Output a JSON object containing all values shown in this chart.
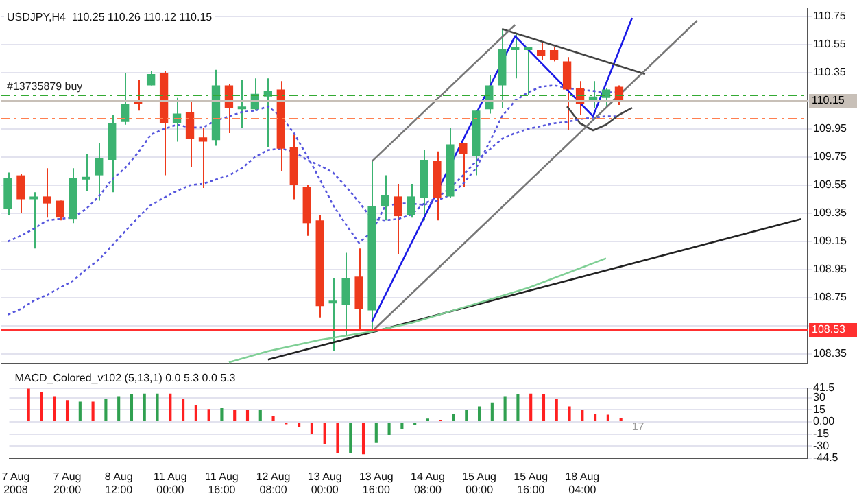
{
  "chart_data": [
    {
      "type": "candlestick",
      "title": "USDJPY,H4  110.25 110.26 110.12 110.15",
      "categories": [
        null,
        null,
        null,
        null,
        null,
        null,
        null,
        null,
        null,
        null,
        null,
        null,
        null,
        null,
        null,
        null,
        null,
        null,
        null,
        null,
        null,
        null,
        null,
        null,
        null,
        null,
        null,
        null,
        null,
        null,
        null,
        null,
        null,
        null,
        null,
        null,
        null,
        null,
        null,
        null,
        null,
        null,
        null,
        null,
        null,
        null,
        null,
        null,
        null,
        null,
        null,
        null,
        null,
        null,
        null,
        null,
        null,
        null,
        null,
        null,
        null,
        null
      ],
      "tick_labels": "y",
      "ohlc": [
        [
          109.38,
          109.64,
          109.34,
          109.6
        ],
        [
          109.62,
          109.63,
          109.35,
          109.45
        ],
        [
          109.45,
          109.5,
          109.1,
          109.46
        ],
        [
          109.47,
          109.67,
          109.32,
          109.42
        ],
        [
          109.44,
          109.44,
          109.3,
          109.32
        ],
        [
          109.31,
          109.67,
          109.28,
          109.6
        ],
        [
          109.59,
          109.77,
          109.51,
          109.6
        ],
        [
          109.62,
          109.85,
          109.44,
          109.74
        ],
        [
          109.73,
          110.05,
          109.5,
          109.99
        ],
        [
          110.0,
          110.35,
          109.98,
          110.13
        ],
        [
          110.15,
          110.3,
          110.08,
          110.13
        ],
        [
          110.26,
          110.36,
          110.26,
          110.34
        ],
        [
          110.35,
          110.36,
          109.62,
          109.99
        ],
        [
          109.99,
          110.17,
          109.86,
          110.06
        ],
        [
          110.07,
          110.14,
          109.68,
          109.88
        ],
        [
          109.89,
          109.96,
          109.53,
          109.86
        ],
        [
          109.87,
          110.37,
          109.83,
          110.26
        ],
        [
          110.26,
          110.27,
          109.92,
          110.1
        ],
        [
          110.09,
          110.3,
          109.96,
          110.1
        ],
        [
          110.09,
          110.31,
          110.08,
          110.2
        ],
        [
          110.18,
          110.31,
          109.82,
          110.22
        ],
        [
          110.23,
          110.29,
          109.65,
          109.81
        ],
        [
          109.82,
          109.91,
          109.45,
          109.55
        ],
        [
          109.54,
          109.55,
          109.19,
          109.28
        ],
        [
          109.3,
          109.34,
          108.61,
          108.69
        ],
        [
          108.71,
          108.89,
          108.37,
          108.72
        ],
        [
          108.7,
          109.07,
          108.48,
          108.89
        ],
        [
          108.9,
          109.1,
          108.52,
          108.67
        ],
        [
          108.66,
          109.72,
          108.52,
          109.4
        ],
        [
          109.4,
          109.62,
          109.3,
          109.48
        ],
        [
          109.47,
          109.56,
          109.06,
          109.33
        ],
        [
          109.34,
          109.56,
          109.32,
          109.47
        ],
        [
          109.46,
          109.8,
          109.3,
          109.73
        ],
        [
          109.72,
          109.79,
          109.3,
          109.46
        ],
        [
          109.47,
          109.96,
          109.46,
          109.84
        ],
        [
          109.85,
          109.85,
          109.54,
          109.77
        ],
        [
          109.76,
          110.08,
          109.62,
          110.08
        ],
        [
          110.09,
          110.33,
          110.06,
          110.26
        ],
        [
          110.26,
          110.66,
          110.1,
          110.52
        ],
        [
          110.51,
          110.63,
          110.31,
          110.52
        ],
        [
          110.51,
          110.52,
          110.19,
          110.52
        ],
        [
          110.51,
          110.56,
          110.44,
          110.47
        ],
        [
          110.51,
          110.53,
          110.43,
          110.44
        ],
        [
          110.43,
          110.46,
          109.94,
          110.23
        ],
        [
          110.24,
          110.29,
          110.05,
          110.13
        ],
        [
          110.14,
          110.29,
          110.1,
          110.18
        ],
        [
          110.17,
          110.24,
          110.11,
          110.23
        ],
        [
          110.25,
          110.26,
          110.12,
          110.15
        ],
        null,
        null,
        null,
        null,
        null,
        null,
        null,
        null,
        null,
        null,
        null,
        null,
        null,
        null
      ],
      "colors": [
        "#3cb371",
        "#ee3a1c",
        "#3cb371",
        "#ee3a1c",
        "#ee3a1c",
        "#3cb371",
        "#3cb371",
        "#3cb371",
        "#3cb371",
        "#3cb371",
        "#ee3a1c",
        "#3cb371",
        "#ee3a1c",
        "#3cb371",
        "#ee3a1c",
        "#ee3a1c",
        "#3cb371",
        "#ee3a1c",
        "#3cb371",
        "#3cb371",
        "#3cb371",
        "#ee3a1c",
        "#ee3a1c",
        "#ee3a1c",
        "#ee3a1c",
        "#3cb371",
        "#3cb371",
        "#ee3a1c",
        "#3cb371",
        "#3cb371",
        "#ee3a1c",
        "#3cb371",
        "#3cb371",
        "#ee3a1c",
        "#3cb371",
        "#ee3a1c",
        "#3cb371",
        "#3cb371",
        "#3cb371",
        "#3cb371",
        "#3cb371",
        "#ee3a1c",
        "#ee3a1c",
        "#ee3a1c",
        "#ee3a1c",
        "#3cb371",
        "#3cb371",
        "#ee3a1c",
        null,
        null,
        null,
        null,
        null,
        null,
        null,
        null,
        null,
        null,
        null,
        null,
        null,
        null
      ],
      "series": [
        {
          "type": "line",
          "color": "#5555dd",
          "line_style": "dotted",
          "values": [
            109.15,
            109.19,
            109.24,
            109.3,
            109.31,
            109.32,
            109.38,
            109.47,
            109.59,
            109.67,
            109.78,
            109.91,
            109.95,
            109.98,
            109.96,
            109.96,
            110.01,
            110.04,
            110.07,
            110.08,
            110.11,
            110.04,
            109.92,
            109.76,
            109.59,
            109.41,
            109.27,
            109.14,
            109.22,
            109.4,
            109.42,
            109.42,
            109.41,
            109.44,
            109.48,
            109.56,
            109.67,
            109.85,
            110.04,
            110.15,
            110.21,
            110.25,
            110.26,
            110.24,
            110.23,
            110.22,
            110.21,
            110.21,
            null,
            null,
            null,
            null,
            null,
            null,
            null,
            null,
            null,
            null,
            null,
            null,
            null,
            null
          ]
        },
        {
          "type": "line",
          "color": "#5555dd",
          "line_style": "dotted",
          "values": [
            108.63,
            108.67,
            108.73,
            108.77,
            108.82,
            108.87,
            108.95,
            109.02,
            109.12,
            109.22,
            109.32,
            109.41,
            109.46,
            109.51,
            109.55,
            109.56,
            109.59,
            109.62,
            109.67,
            109.75,
            109.8,
            109.81,
            109.79,
            109.73,
            109.69,
            109.64,
            109.54,
            109.43,
            109.31,
            109.3,
            109.31,
            109.34,
            109.42,
            109.46,
            109.53,
            109.62,
            109.72,
            109.8,
            109.88,
            109.92,
            109.95,
            109.97,
            109.99,
            110.0,
            110.02,
            110.03,
            110.04,
            110.04,
            null,
            null,
            null,
            null,
            null,
            null,
            null,
            null,
            null,
            null,
            null,
            null,
            null,
            null
          ]
        },
        {
          "type": "line",
          "color": "#7fcf95",
          "line_style": "solid",
          "values": [
            null,
            null,
            null,
            null,
            null,
            null,
            null,
            null,
            null,
            null,
            null,
            null,
            null,
            null,
            null,
            null,
            null,
            108.29,
            null,
            null,
            108.37,
            null,
            null,
            null,
            108.45,
            null,
            null,
            null,
            108.51,
            null,
            null,
            108.57,
            null,
            null,
            null,
            108.68,
            null,
            null,
            null,
            null,
            108.82,
            null,
            null,
            null,
            null,
            null,
            109.03,
            null,
            null,
            null,
            null,
            null,
            null,
            null,
            null,
            null,
            null,
            null,
            null,
            null,
            null,
            null
          ]
        },
        {
          "type": "line",
          "color": "#222222",
          "line_style": "solid",
          "values": [
            null,
            null,
            null,
            null,
            null,
            null,
            null,
            null,
            null,
            null,
            null,
            null,
            null,
            null,
            null,
            null,
            null,
            null,
            null,
            null,
            108.31,
            null,
            null,
            null,
            null,
            null,
            null,
            null,
            null,
            null,
            null,
            null,
            null,
            null,
            null,
            null,
            null,
            null,
            null,
            null,
            null,
            null,
            null,
            null,
            null,
            null,
            null,
            null,
            null,
            null,
            null,
            null,
            null,
            null,
            null,
            null,
            null,
            null,
            null,
            null,
            null,
            109.31
          ]
        },
        {
          "type": "line",
          "color": "#777777",
          "line_style": "solid",
          "values": [
            null,
            null,
            null,
            null,
            null,
            null,
            null,
            null,
            null,
            null,
            null,
            null,
            null,
            null,
            null,
            null,
            null,
            null,
            null,
            null,
            null,
            null,
            null,
            null,
            null,
            null,
            null,
            null,
            108.51,
            null,
            null,
            null,
            null,
            null,
            null,
            null,
            null,
            null,
            null,
            null,
            null,
            null,
            null,
            null,
            null,
            null,
            null,
            null,
            null,
            null,
            null,
            null,
            null,
            110.72,
            null,
            null,
            null,
            null,
            null,
            null,
            null,
            null
          ]
        },
        {
          "type": "line",
          "color": "#777777",
          "line_style": "solid",
          "values": [
            null,
            null,
            null,
            null,
            null,
            null,
            null,
            null,
            null,
            null,
            null,
            null,
            null,
            null,
            null,
            null,
            null,
            null,
            null,
            null,
            null,
            null,
            null,
            null,
            null,
            null,
            null,
            null,
            109.72,
            null,
            null,
            null,
            null,
            null,
            null,
            null,
            null,
            null,
            null,
            110.69,
            null,
            null,
            null,
            null,
            null,
            null,
            null,
            null,
            null,
            null,
            null,
            null,
            null,
            null,
            null,
            null,
            null,
            null,
            null,
            null,
            null,
            null
          ]
        },
        {
          "type": "line",
          "color": "#444444",
          "line_style": "solid",
          "values": [
            null,
            null,
            null,
            null,
            null,
            null,
            null,
            null,
            null,
            null,
            null,
            null,
            null,
            null,
            null,
            null,
            null,
            null,
            null,
            null,
            null,
            null,
            null,
            null,
            null,
            null,
            null,
            null,
            null,
            null,
            null,
            null,
            null,
            null,
            null,
            null,
            null,
            null,
            110.66,
            null,
            null,
            null,
            null,
            null,
            null,
            null,
            null,
            null,
            null,
            110.34,
            null,
            null,
            null,
            null,
            null,
            null,
            null,
            null,
            null,
            null,
            null,
            null
          ]
        },
        {
          "type": "line",
          "color": "#444444",
          "line_style": "solid",
          "values": [
            null,
            null,
            null,
            null,
            null,
            null,
            null,
            null,
            null,
            null,
            null,
            null,
            null,
            null,
            null,
            null,
            null,
            null,
            null,
            null,
            null,
            null,
            null,
            null,
            null,
            null,
            null,
            null,
            null,
            null,
            null,
            null,
            null,
            null,
            null,
            null,
            null,
            null,
            null,
            null,
            null,
            null,
            null,
            110.11,
            109.99,
            109.94,
            109.98,
            110.05,
            110.1,
            null,
            null,
            null,
            null,
            null,
            null,
            null,
            null,
            null,
            null,
            null,
            null,
            null
          ]
        },
        {
          "type": "line",
          "color": "#1a1ae6",
          "line_style": "solid",
          "values": [
            null,
            null,
            null,
            null,
            null,
            null,
            null,
            null,
            null,
            null,
            null,
            null,
            null,
            null,
            null,
            null,
            null,
            null,
            null,
            null,
            null,
            null,
            null,
            null,
            null,
            null,
            null,
            null,
            108.58,
            null,
            null,
            null,
            null,
            null,
            null,
            null,
            null,
            null,
            null,
            110.61,
            null,
            null,
            null,
            null,
            null,
            110.04,
            null,
            null,
            110.74,
            null,
            null,
            null,
            null,
            null,
            null,
            null,
            null,
            null,
            null,
            null,
            null,
            null
          ]
        }
      ],
      "ylim": [
        108.28,
        110.81
      ],
      "yticks": [
        110.75,
        110.55,
        110.35,
        {
          "value": 110.15,
          "label": null
        },
        109.95,
        109.75,
        109.55,
        109.35,
        109.15,
        108.95,
        108.75,
        {
          "value": 108.55,
          "label": null
        },
        108.35
      ],
      "ref_lines": [
        {
          "axis": "y",
          "value": 110.15,
          "label": "110.15",
          "color": "#c8c0b8",
          "line_style": "solid"
        },
        {
          "axis": "y",
          "value": 108.53,
          "label": "108.53",
          "color": "#ff3030",
          "line_style": "solid"
        },
        {
          "axis": "y",
          "value": 110.19,
          "label": "#13735879 buy",
          "color": "#33aa33",
          "line_style": "dashed"
        },
        {
          "axis": "y",
          "value": 110.03,
          "color": "#ff7f50",
          "line_style": "dashed"
        }
      ],
      "grid": "y"
    },
    {
      "type": "bar",
      "title": "MACD_Colored_v102 (5,13,1) 0.0 5.3 0.0 5.3",
      "categories": [
        "7 Aug 2008",
        null,
        null,
        null,
        "7 Aug 20:00",
        null,
        null,
        null,
        "8 Aug 12:00",
        null,
        null,
        null,
        "11 Aug 00:00",
        null,
        null,
        null,
        "11 Aug 16:00",
        null,
        null,
        null,
        "12 Aug 08:00",
        null,
        null,
        null,
        "13 Aug 00:00",
        null,
        null,
        null,
        "13 Aug 16:00",
        null,
        null,
        null,
        "14 Aug 08:00",
        null,
        null,
        null,
        "15 Aug 00:00",
        null,
        null,
        null,
        "15 Aug 16:00",
        null,
        null,
        null,
        "18 Aug 04:00",
        null,
        null,
        null,
        null,
        null,
        null,
        null,
        null,
        null,
        null,
        null,
        null,
        null,
        null,
        null,
        null,
        null
      ],
      "values": [
        null,
        41,
        37,
        31,
        27,
        25,
        25,
        28,
        31,
        34,
        35,
        35,
        35,
        28,
        21,
        16,
        17,
        15,
        15,
        15,
        7,
        -3,
        -6,
        -15,
        -27,
        -38,
        -38,
        -40,
        -26,
        -16,
        -9,
        -4,
        4,
        2,
        10,
        15,
        19,
        24,
        31,
        34,
        35,
        34,
        28,
        19,
        15,
        10,
        9,
        5,
        null,
        null,
        null,
        null,
        null,
        null,
        null,
        null,
        null,
        null,
        null,
        null,
        null,
        null
      ],
      "colors": [
        null,
        "#ff2020",
        "#ff2020",
        "#ff2020",
        "#ff2020",
        "#30a050",
        "#ff2020",
        "#30a050",
        "#30a050",
        "#30a050",
        "#30a050",
        "#30a050",
        "#ff2020",
        "#ff2020",
        "#ff2020",
        "#ff2020",
        "#30a050",
        "#ff2020",
        "#ff2020",
        "#30a050",
        "#ff2020",
        "#ff2020",
        "#ff2020",
        "#ff2020",
        "#ff2020",
        "#ff2020",
        "#30a050",
        "#ff2020",
        "#30a050",
        "#30a050",
        "#30a050",
        "#30a050",
        "#30a050",
        "#ff2020",
        "#30a050",
        "#30a050",
        "#30a050",
        "#30a050",
        "#30a050",
        "#30a050",
        "#ff2020",
        "#ff2020",
        "#ff2020",
        "#ff2020",
        "#ff2020",
        "#ff2020",
        "#ff2020",
        "#ff2020",
        null,
        null,
        null,
        null,
        null,
        null,
        null,
        null,
        null,
        null,
        null,
        null,
        null,
        null
      ],
      "ylim": [
        -44.5,
        41.5
      ],
      "yticks": [
        41.5,
        30,
        15,
        {
          "value": 0,
          "label": "0.00"
        },
        -15,
        -30,
        -44.5
      ],
      "grid": "y",
      "annotations": [
        "17"
      ]
    }
  ]
}
